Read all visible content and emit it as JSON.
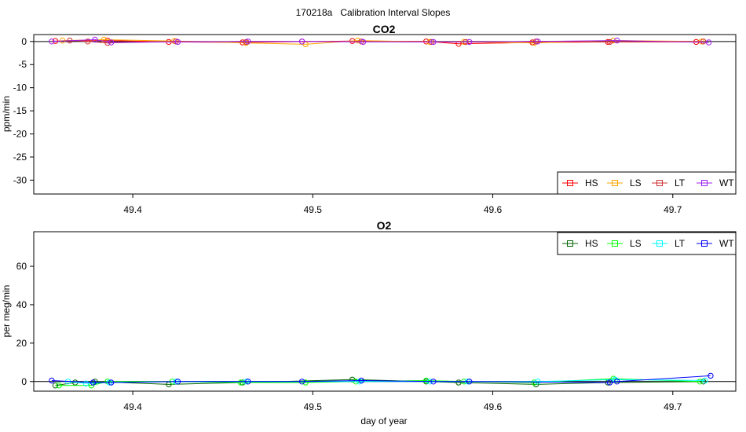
{
  "figure": {
    "title": "170218a   Calibration Interval Slopes"
  },
  "chart_data": [
    {
      "type": "line",
      "title": "CO2",
      "xlabel": "",
      "ylabel": "ppm/min",
      "xlim": [
        49.345,
        49.735
      ],
      "ylim": [
        -33,
        1.5
      ],
      "xticks": [
        "49.4",
        "49.5",
        "49.6",
        "49.7"
      ],
      "yticks": [
        "0",
        "-5",
        "-10",
        "-15",
        "-20",
        "-25",
        "-30"
      ],
      "hline": 0,
      "legend_position": "bottom-right",
      "series": [
        {
          "name": "HS",
          "color": "#ff0000",
          "x": [
            49.357,
            49.386,
            49.42,
            49.461,
            49.522,
            49.563,
            49.581,
            49.622,
            49.664,
            49.713
          ],
          "y": [
            0.1,
            0.2,
            -0.1,
            -0.2,
            0.1,
            0.0,
            -0.5,
            -0.2,
            -0.1,
            -0.1
          ]
        },
        {
          "name": "LS",
          "color": "#ffa500",
          "x": [
            49.361,
            49.384,
            49.423,
            49.463,
            49.496,
            49.525,
            49.565,
            49.584,
            49.623,
            49.667,
            49.716
          ],
          "y": [
            0.2,
            0.4,
            0.1,
            -0.3,
            -0.6,
            0.2,
            -0.1,
            -0.1,
            -0.3,
            0.2,
            0.0
          ]
        },
        {
          "name": "LT",
          "color": "#cd3333",
          "x": [
            49.365,
            49.375,
            49.386,
            49.424,
            49.463,
            49.494,
            49.527,
            49.566,
            49.585,
            49.624,
            49.665,
            49.717
          ],
          "y": [
            0.2,
            0.0,
            -0.3,
            0.0,
            -0.1,
            0.0,
            0.0,
            -0.1,
            -0.1,
            0.0,
            -0.1,
            0.0
          ]
        },
        {
          "name": "WT",
          "color": "#a020f0",
          "x": [
            49.355,
            49.379,
            49.388,
            49.425,
            49.464,
            49.494,
            49.528,
            49.567,
            49.587,
            49.625,
            49.669,
            49.72
          ],
          "y": [
            0.0,
            0.4,
            -0.2,
            -0.1,
            0.0,
            0.0,
            -0.1,
            -0.1,
            -0.1,
            0.0,
            0.2,
            -0.2
          ]
        }
      ]
    },
    {
      "type": "line",
      "title": "O2",
      "xlabel": "day of year",
      "ylabel": "per meg/min",
      "xlim": [
        49.345,
        49.735
      ],
      "ylim": [
        -5,
        78
      ],
      "xticks": [
        "49.4",
        "49.5",
        "49.6",
        "49.7"
      ],
      "yticks": [
        "0",
        "20",
        "40",
        "60"
      ],
      "hline": 0,
      "legend_position": "top-right",
      "series": [
        {
          "name": "HS",
          "color": "#006400",
          "x": [
            49.357,
            49.368,
            49.379,
            49.42,
            49.461,
            49.522,
            49.563,
            49.581,
            49.624,
            49.664,
            49.717
          ],
          "y": [
            -2.0,
            -0.5,
            0.0,
            -1.5,
            -0.5,
            1.0,
            0.0,
            -0.5,
            -1.5,
            -0.5,
            0.0
          ]
        },
        {
          "name": "LS",
          "color": "#00ff00",
          "x": [
            49.359,
            49.377,
            49.386,
            49.422,
            49.46,
            49.496,
            49.524,
            49.563,
            49.584,
            49.623,
            49.667,
            49.715
          ],
          "y": [
            -2.0,
            -2.0,
            0.0,
            0.0,
            -0.5,
            -0.5,
            0.0,
            0.5,
            0.0,
            -0.5,
            1.5,
            0.0
          ]
        },
        {
          "name": "LT",
          "color": "#00ffff",
          "x": [
            49.364,
            49.374,
            49.387,
            49.424,
            49.463,
            49.526,
            49.565,
            49.586,
            49.625,
            49.668,
            49.718
          ],
          "y": [
            0.0,
            -1.0,
            -0.5,
            0.0,
            0.0,
            0.0,
            0.0,
            0.0,
            0.0,
            1.0,
            0.5
          ]
        },
        {
          "name": "WT",
          "color": "#0000ff",
          "x": [
            49.355,
            49.378,
            49.388,
            49.425,
            49.464,
            49.494,
            49.527,
            49.567,
            49.587,
            49.665,
            49.669,
            49.721
          ],
          "y": [
            0.5,
            -0.5,
            -0.5,
            0.0,
            0.0,
            0.0,
            0.5,
            0.0,
            0.0,
            -0.5,
            0.0,
            3.0
          ]
        }
      ]
    }
  ]
}
